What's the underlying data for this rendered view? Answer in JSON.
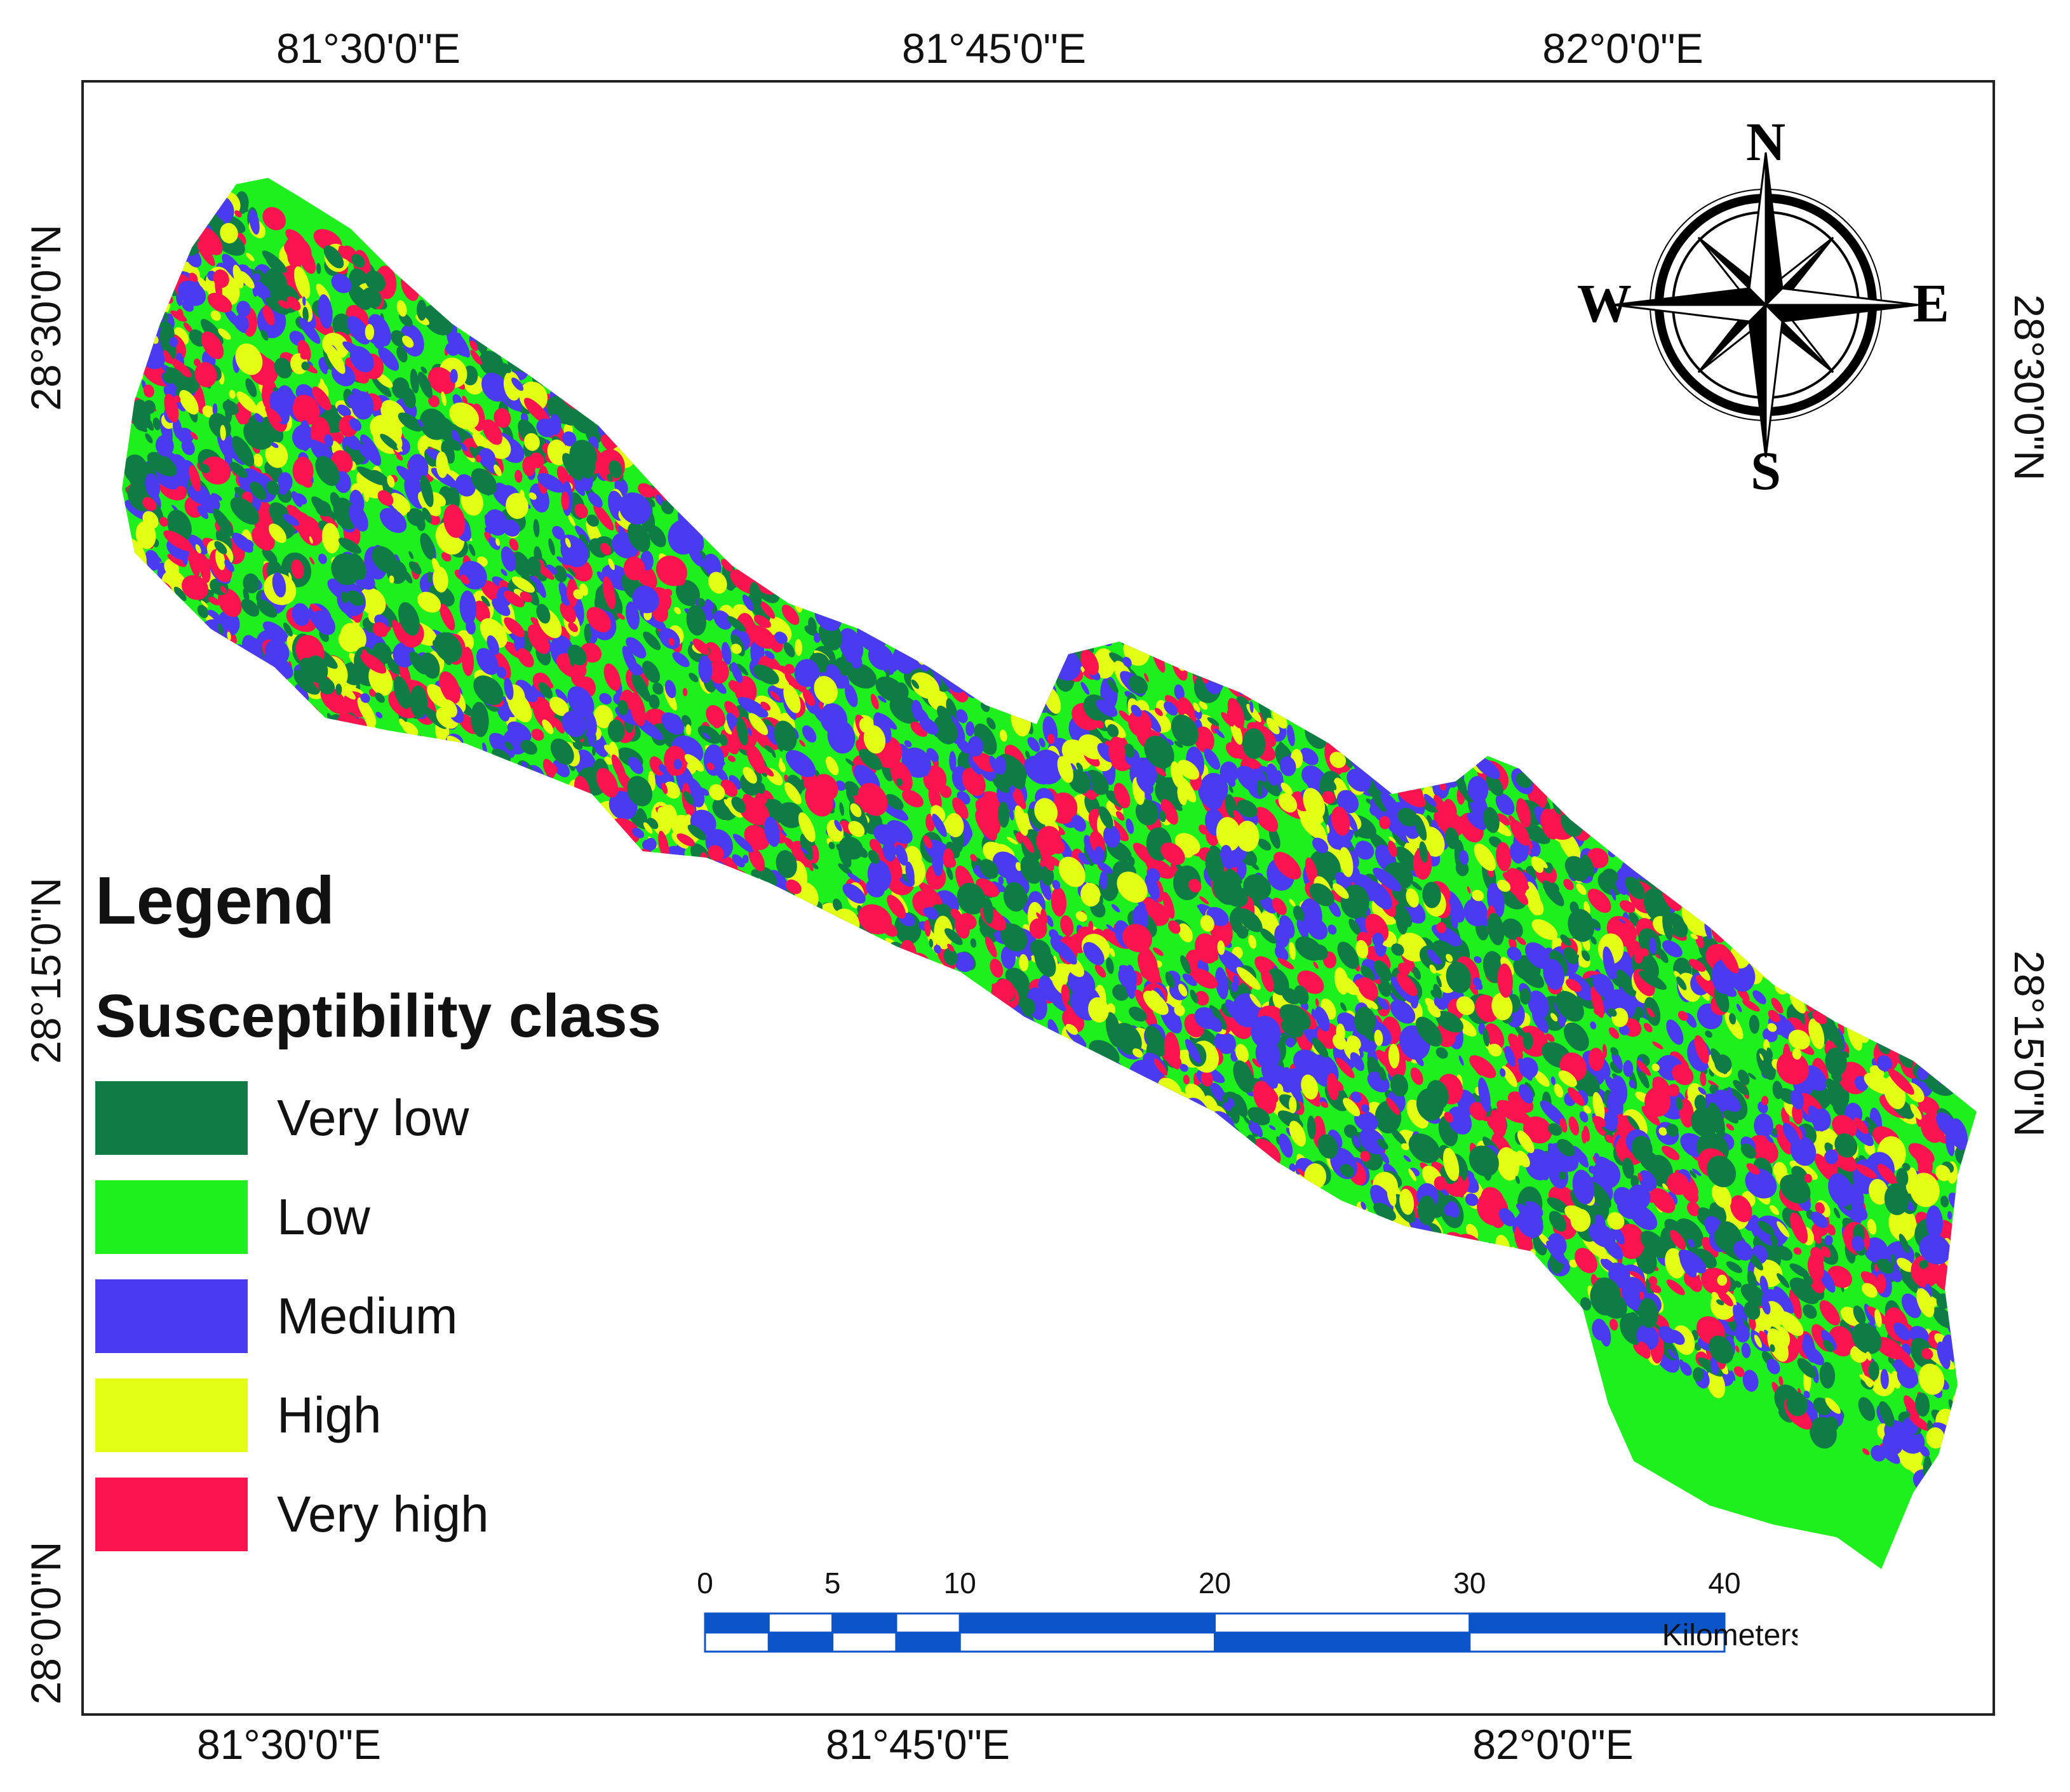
{
  "map": {
    "top_longitudes": [
      "81°30'0\"E",
      "81°45'0\"E",
      "82°0'0\"E"
    ],
    "bottom_longitudes": [
      "81°30'0\"E",
      "81°45'0\"E",
      "82°0'0\"E"
    ],
    "left_latitudes": [
      "28°30'0\"N",
      "28°15'0\"N",
      "28°0'0\"N"
    ],
    "right_latitudes": [
      "28°30'0\"N",
      "28°15'0\"N"
    ]
  },
  "legend": {
    "title": "Legend",
    "subtitle": "Susceptibility class",
    "classes": [
      {
        "label": "Very low",
        "color": "#0f7c45"
      },
      {
        "label": "Low",
        "color": "#1df01d"
      },
      {
        "label": "Medium",
        "color": "#4b3bf0"
      },
      {
        "label": "High",
        "color": "#e2ff14"
      },
      {
        "label": "Very high",
        "color": "#fb1450"
      }
    ]
  },
  "compass": {
    "north": "N",
    "south": "S",
    "east": "E",
    "west": "W"
  },
  "scale_bar": {
    "ticks": [
      "0",
      "5",
      "10",
      "20",
      "30",
      "40"
    ],
    "unit": "Kilometers",
    "color": "#0b55c9"
  }
}
